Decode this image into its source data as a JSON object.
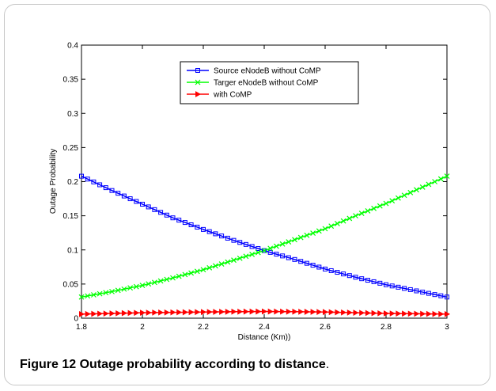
{
  "caption": {
    "label": "Figure 12",
    "title": "Outage probability according to distance",
    "end": "."
  },
  "chart_data": {
    "type": "line",
    "xlabel": "Distance (Km))",
    "ylabel": "Outage Probability",
    "xlim": [
      1.8,
      3.0
    ],
    "ylim": [
      0,
      0.4
    ],
    "xticks": [
      "1.8",
      "2",
      "2.2",
      "2.4",
      "2.6",
      "2.8",
      "3"
    ],
    "yticks": [
      "0",
      "0.05",
      "0.1",
      "0.15",
      "0.2",
      "0.25",
      "0.3",
      "0.35",
      "0.4"
    ],
    "grid": false,
    "legend_position": "top-center",
    "x": [
      1.8,
      1.9,
      2.0,
      2.1,
      2.2,
      2.3,
      2.4,
      2.5,
      2.6,
      2.7,
      2.8,
      2.9,
      3.0
    ],
    "series": [
      {
        "name": "Source eNodeB without CoMP",
        "color": "#0000ff",
        "marker": "square",
        "values": [
          0.208,
          0.187,
          0.167,
          0.147,
          0.13,
          0.114,
          0.099,
          0.086,
          0.072,
          0.06,
          0.049,
          0.04,
          0.031
        ]
      },
      {
        "name": "Targer eNodeB without CoMP",
        "color": "#00ff00",
        "marker": "x",
        "values": [
          0.031,
          0.039,
          0.048,
          0.059,
          0.071,
          0.085,
          0.099,
          0.115,
          0.131,
          0.15,
          0.168,
          0.188,
          0.208
        ]
      },
      {
        "name": "with CoMP",
        "color": "#ff0000",
        "marker": "triangle-right",
        "values": [
          0.006,
          0.007,
          0.008,
          0.0085,
          0.009,
          0.0095,
          0.0098,
          0.0095,
          0.009,
          0.008,
          0.007,
          0.0065,
          0.006
        ]
      }
    ]
  }
}
